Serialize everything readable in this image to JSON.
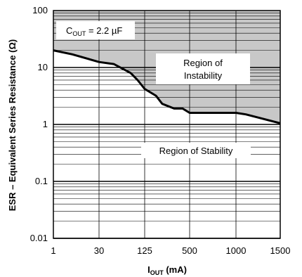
{
  "chart_data": {
    "type": "line",
    "title": "",
    "xlabel_main": "I",
    "xlabel_sub": "OUT",
    "xlabel_unit": " (mA)",
    "ylabel": "ESR – Equivalent Series Resistance (Ω)",
    "x_tick_labels": [
      "1",
      "30",
      "125",
      "500",
      "1000",
      "1500"
    ],
    "y_tick_labels": [
      "100",
      "10",
      "1",
      "0.1",
      "0.01"
    ],
    "y_scale": "log",
    "ylim": [
      0.01,
      100
    ],
    "grid": true,
    "condition": {
      "prefix": "C",
      "sub": "OUT",
      "suffix": " = 2.2 µF"
    },
    "regions": {
      "upper_line1": "Region of",
      "upper_line2": "Instability",
      "lower": "Region of Stability"
    },
    "series": [
      {
        "x": [
          "1",
          "15",
          "30",
          "45",
          "75",
          "100",
          "125",
          "160",
          "200",
          "250",
          "350",
          "500",
          "650",
          "800",
          "1000",
          "1150",
          "1300",
          "1500"
        ],
        "values": [
          20,
          17,
          12.5,
          11.5,
          8,
          6,
          4.2,
          3.2,
          2.3,
          1.9,
          1.9,
          1.6,
          1.6,
          1.6,
          1.6,
          1.5,
          1.3,
          1.05
        ]
      }
    ],
    "colors": {
      "instability_fill": "#c8c8c8",
      "curve": "#000000",
      "grid": "#000000"
    }
  }
}
